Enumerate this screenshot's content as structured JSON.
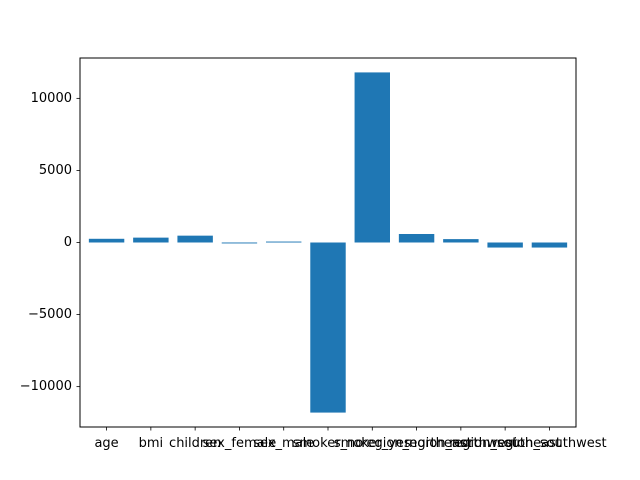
{
  "chart_data": {
    "type": "bar",
    "categories": [
      "age",
      "bmi",
      "children",
      "sex_female",
      "sex_male",
      "smoker_no",
      "smoker_yes",
      "region_northeast",
      "region_northwest",
      "region_southeast",
      "region_southwest"
    ],
    "series": [
      {
        "values": [
          257,
          338,
          475,
          -65,
          65,
          -11800,
          11800,
          590,
          235,
          -350,
          -350
        ]
      }
    ],
    "ylim": [
      -12800,
      12800
    ],
    "yticks": [
      -10000,
      -5000,
      0,
      5000,
      10000
    ],
    "ytick_labels": [
      "−10000",
      "−5000",
      "0",
      "5000",
      "10000"
    ],
    "title": "",
    "xlabel": "",
    "ylabel": "",
    "bar_color": "#1f77b4",
    "grid": false,
    "legend": "none"
  }
}
